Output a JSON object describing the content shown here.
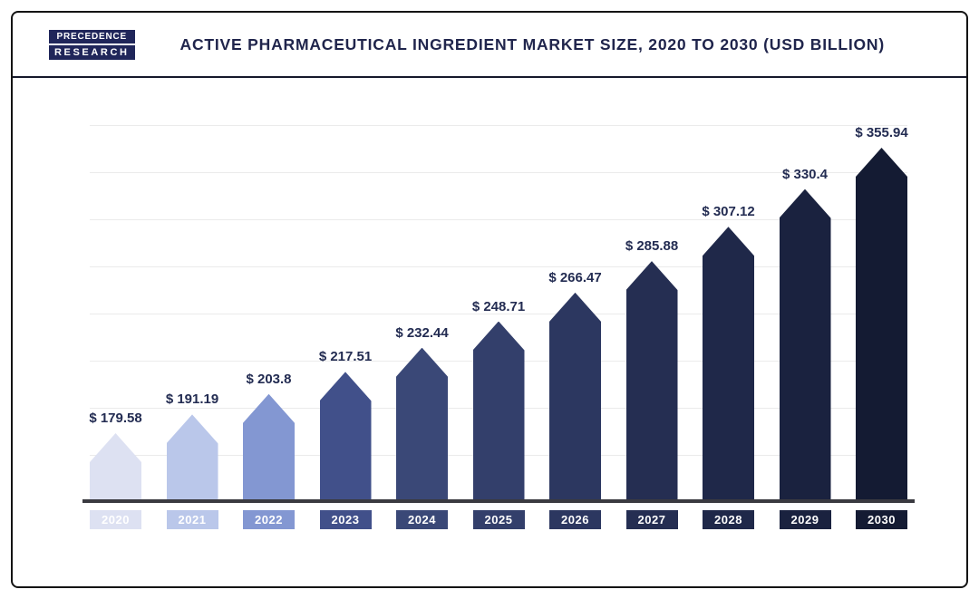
{
  "header": {
    "logo": {
      "line1": "PRECEDENCE",
      "line2": "RESEARCH"
    },
    "title": "ACTIVE PHARMACEUTICAL INGREDIENT MARKET SIZE, 2020 TO 2030 (USD BILLION)"
  },
  "chart_data": {
    "type": "bar",
    "title": "Active Pharmaceutical Ingredient Market Size, 2020 to 2030 (USD Billion)",
    "unit": "USD Billion",
    "categories": [
      "2020",
      "2021",
      "2022",
      "2023",
      "2024",
      "2025",
      "2026",
      "2027",
      "2028",
      "2029",
      "2030"
    ],
    "values": [
      179.58,
      191.19,
      203.8,
      217.51,
      232.44,
      248.71,
      266.47,
      285.88,
      307.12,
      330.4,
      355.94
    ],
    "labels": [
      "$ 179.58",
      "$ 191.19",
      "$ 203.8",
      "$ 217.51",
      "$ 232.44",
      "$ 248.71",
      "$ 266.47",
      "$ 285.88",
      "$ 307.12",
      "$ 330.4",
      "$ 355.94"
    ],
    "colors": [
      "#dde1f2",
      "#bac7ea",
      "#8397d2",
      "#41508a",
      "#3a4877",
      "#333f6b",
      "#2c3760",
      "#252e52",
      "#1f2849",
      "#1a223f",
      "#141b33"
    ],
    "gridlines": true,
    "legend": "none",
    "yaxis_visible": false
  },
  "colors": {
    "accent": "#20254c",
    "baseline": "#3a3a40",
    "grid": "#ebebeb",
    "border": "#141414",
    "logo_bg": "#20265a"
  }
}
